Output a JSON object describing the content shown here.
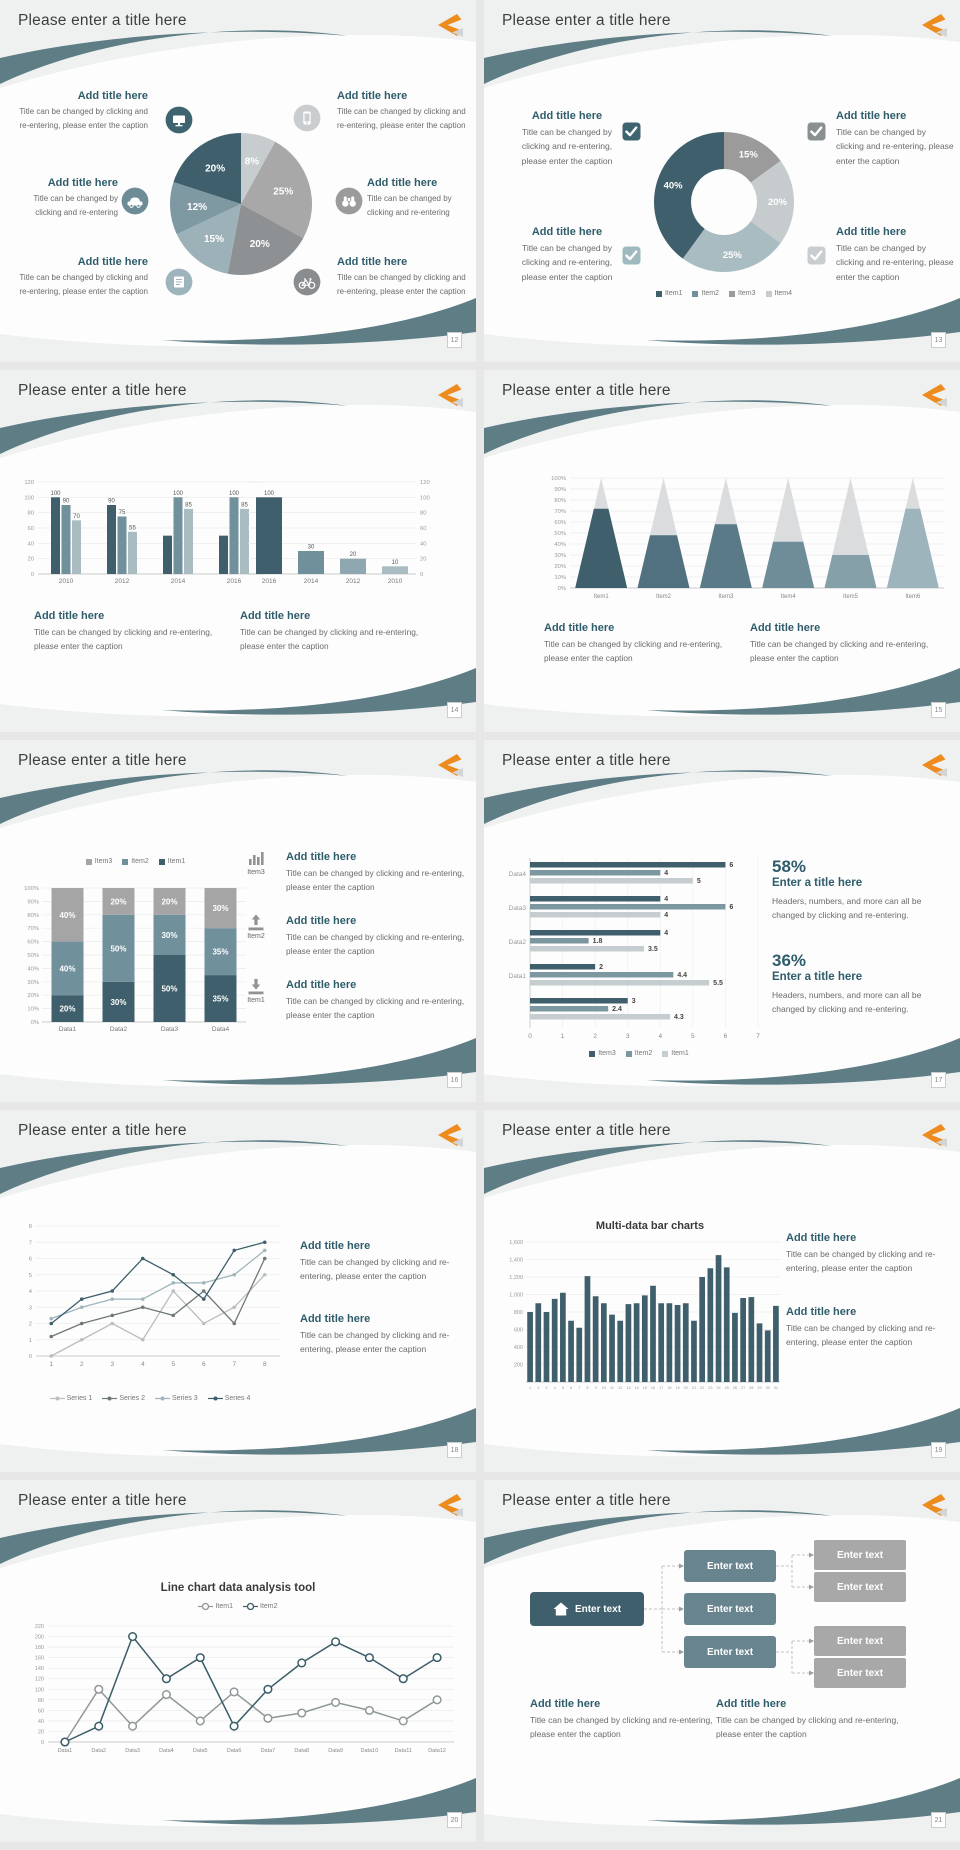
{
  "page": {
    "background": "#e7e7e7"
  },
  "common": {
    "slide_title": "Please enter a title here",
    "add_title": "Add title here",
    "caption_long": "Title can be changed by clicking and re-entering, please enter the caption",
    "caption_short": "Title can be changed by clicking and re-entering",
    "stat_caption": "Headers, numbers, and more can all be changed by clicking and re-entering.",
    "enter_title": "Enter a title here",
    "enter_text": "Enter text"
  },
  "colors": {
    "teal_dark": "#3e5f6b",
    "teal_mid": "#70909c",
    "teal_light": "#a9bcc2",
    "gray_light": "#c6cbce",
    "gray_mid": "#9b9b9b",
    "gray_dark": "#8e9193",
    "heading": "#2f5d6b",
    "swoosh": "#5e7d85",
    "orange": "#ee8b1e",
    "logo_gray": "#d2d4d5",
    "caption": "#6b6b6b",
    "title": "#3e3e3e"
  },
  "slides": [
    {
      "page": "12",
      "type": "pie_callouts",
      "chart": 0,
      "blocks": [
        {
          "pos": "left-top",
          "icon": "monitor-icon",
          "icon_color": "#3e6470",
          "caption": "long"
        },
        {
          "pos": "left-middle",
          "icon": "car-icon",
          "icon_color": "#6d8c96",
          "caption": "short"
        },
        {
          "pos": "left-bottom",
          "icon": "book-icon",
          "icon_color": "#9db4bc",
          "caption": "long"
        },
        {
          "pos": "right-top",
          "icon": "phone-icon",
          "icon_color": "#c9cdd0",
          "caption": "long"
        },
        {
          "pos": "right-middle",
          "icon": "binoculars-icon",
          "icon_color": "#9b9b9b",
          "caption": "short"
        },
        {
          "pos": "right-bottom",
          "icon": "bicycle-icon",
          "icon_color": "#8a8d8f",
          "caption": "long"
        }
      ]
    },
    {
      "page": "13",
      "type": "donut_checks",
      "chart": 1,
      "blocks": [
        {
          "pos": "left-top",
          "check_color": "#3e6470",
          "caption": "long"
        },
        {
          "pos": "right-top",
          "check_color": "#8a8f91",
          "caption": "long"
        },
        {
          "pos": "left-bottom",
          "check_color": "#9fb9c0",
          "caption": "long"
        },
        {
          "pos": "right-bottom",
          "check_color": "#c9cdcf",
          "caption": "long"
        }
      ]
    },
    {
      "page": "14",
      "type": "two_bars",
      "charts": [
        2,
        3
      ],
      "blocks": [
        {
          "caption": "long"
        },
        {
          "caption": "long"
        }
      ]
    },
    {
      "page": "15",
      "type": "pyramids",
      "chart": 4,
      "blocks": [
        {
          "caption": "long"
        },
        {
          "caption": "long"
        }
      ]
    },
    {
      "page": "16",
      "type": "stacked_features",
      "chart": 5,
      "blocks": [
        {
          "icon": "bar-chart-icon",
          "label": "Item3",
          "caption": "long"
        },
        {
          "icon": "upload-icon",
          "label": "Item2",
          "caption": "long"
        },
        {
          "icon": "download-icon",
          "label": "Item1",
          "caption": "long"
        }
      ]
    },
    {
      "page": "17",
      "type": "hbar_stats",
      "chart": 6,
      "blocks": [
        {
          "value": "58%"
        },
        {
          "value": "36%"
        }
      ]
    },
    {
      "page": "18",
      "type": "line_text",
      "chart": 7,
      "blocks": [
        {
          "caption": "long"
        },
        {
          "caption": "long"
        }
      ]
    },
    {
      "page": "19",
      "type": "multibar_text",
      "chart": 8,
      "blocks": [
        {
          "caption": "long"
        },
        {
          "caption": "long"
        }
      ]
    },
    {
      "page": "20",
      "type": "line_full",
      "chart": 9,
      "blocks": []
    },
    {
      "page": "21",
      "type": "diagram",
      "blocks": [
        {
          "caption": "long"
        },
        {
          "caption": "long"
        }
      ],
      "diagram": {
        "root_label": "Enter text",
        "mid_labels": [
          "Enter text",
          "Enter text",
          "Enter text"
        ],
        "leaf_labels": [
          "Enter text",
          "Enter text",
          "Enter text",
          "Enter text"
        ]
      }
    }
  ],
  "chart_data": [
    {
      "type": "pie",
      "labels": [
        "8%",
        "25%",
        "20%",
        "15%",
        "12%",
        "20%"
      ],
      "values": [
        8,
        25,
        20,
        15,
        12,
        20
      ],
      "colors": [
        "#c7ccce",
        "#a8a8a8",
        "#8e9193",
        "#9db1b8",
        "#7f99a3",
        "#3e5f6b"
      ]
    },
    {
      "type": "pie",
      "subtype": "donut",
      "labels": [
        "15%",
        "20%",
        "25%",
        "40%"
      ],
      "values": [
        15,
        20,
        25,
        40
      ],
      "colors": [
        "#9b9b9b",
        "#c6cbce",
        "#a9bcc2",
        "#3e5f6b"
      ],
      "legend": [
        "Item1",
        "Item2",
        "Item3",
        "Item4"
      ],
      "legend_colors": [
        "#3e5f6b",
        "#70909c",
        "#9b9b9b",
        "#c6cbce"
      ],
      "legend_position": "bottom"
    },
    {
      "type": "bar",
      "categories": [
        "2010",
        "2012",
        "2014",
        "2016"
      ],
      "series": [
        {
          "values": [
            100,
            90,
            50,
            50
          ],
          "labels": [
            "100",
            "90",
            "",
            ""
          ],
          "color": "#3e5f6b"
        },
        {
          "values": [
            90,
            75,
            100,
            100
          ],
          "labels": [
            "90",
            "75",
            "100",
            "100"
          ],
          "color": "#70909c"
        },
        {
          "values": [
            70,
            55,
            85,
            85
          ],
          "labels": [
            "70",
            "55",
            "85",
            "85"
          ],
          "color": "#a9bcc2"
        }
      ],
      "ylim": [
        0,
        120
      ],
      "ystep": 20,
      "axis_side": "left",
      "grid": true
    },
    {
      "type": "bar",
      "categories": [
        "2016",
        "2014",
        "2012",
        "2010"
      ],
      "series": [
        {
          "values": [
            100,
            30,
            20,
            10
          ],
          "labels": [
            "100",
            "30",
            "20",
            "10"
          ],
          "color": null
        }
      ],
      "bar_colors": [
        "#3e5f6b",
        "#70909c",
        "#8ea7b0",
        "#a9bcc2"
      ],
      "ylim": [
        0,
        120
      ],
      "ystep": 20,
      "axis_side": "right",
      "grid": true
    },
    {
      "type": "bar",
      "subtype": "pyramid",
      "categories": [
        "Item1",
        "Item2",
        "Item3",
        "Item4",
        "Item5",
        "Item6"
      ],
      "values": [
        72,
        48,
        58,
        42,
        30,
        72
      ],
      "colors": [
        "#3e5f6b",
        "#527180",
        "#5b7a87",
        "#6f8d99",
        "#86a0aa",
        "#9db4bc"
      ],
      "ylim": [
        0,
        100
      ],
      "ystep": 10,
      "ytick_suffix": "%"
    },
    {
      "type": "bar",
      "subtype": "stacked",
      "categories": [
        "Data1",
        "Data2",
        "Data3",
        "Data4"
      ],
      "series": [
        {
          "name": "Item1",
          "values": [
            20,
            30,
            50,
            35
          ],
          "color": "#3e5f6b"
        },
        {
          "name": "Item2",
          "values": [
            40,
            50,
            30,
            35
          ],
          "color": "#70909c"
        },
        {
          "name": "Item3",
          "values": [
            40,
            20,
            20,
            30
          ],
          "color": "#a5a5a5"
        }
      ],
      "legend_order": [
        "Item3",
        "Item2",
        "Item1"
      ],
      "legend_colors": [
        "#a5a5a5",
        "#70909c",
        "#3e5f6b"
      ],
      "ylim": [
        0,
        100
      ],
      "ystep": 10,
      "ytick_suffix": "%",
      "legend_position": "top"
    },
    {
      "type": "bar",
      "subtype": "horizontal",
      "groups": [
        "Data4",
        "Data3",
        "Data2",
        "Data1",
        ""
      ],
      "series": [
        {
          "name": "Item3",
          "values": [
            6,
            4,
            4,
            2,
            3
          ],
          "color": "#3e5f6b"
        },
        {
          "name": "Item2",
          "values": [
            4,
            6,
            1.8,
            4.4,
            2.4
          ],
          "color": "#7d97a0"
        },
        {
          "name": "Item1",
          "values": [
            5,
            4,
            3.5,
            5.5,
            4.3
          ],
          "color": "#c6cdd0"
        }
      ],
      "xlim": [
        0,
        7
      ],
      "xstep": 1,
      "legend_position": "bottom"
    },
    {
      "type": "line",
      "x": [
        1,
        2,
        3,
        4,
        5,
        6,
        7,
        8
      ],
      "series": [
        {
          "name": "Series 1",
          "values": [
            0,
            1,
            2,
            1,
            4,
            2,
            3,
            5
          ],
          "color": "#b9bec0"
        },
        {
          "name": "Series 2",
          "values": [
            1.2,
            2,
            2.5,
            3,
            2.5,
            4,
            2,
            6
          ],
          "color": "#6f7779"
        },
        {
          "name": "Series 3",
          "values": [
            2.3,
            3,
            3.5,
            3.5,
            4.5,
            4.5,
            5,
            6.5
          ],
          "color": "#9fb4bb"
        },
        {
          "name": "Series 4",
          "values": [
            2,
            3.5,
            4,
            6,
            5,
            3.5,
            6.5,
            7
          ],
          "color": "#3e5f6b"
        }
      ],
      "ylim": [
        0,
        8
      ],
      "ystep": 1,
      "legend_position": "bottom",
      "grid": true
    },
    {
      "type": "bar",
      "title": "Multi-data bar charts",
      "categories": [
        "1",
        "2",
        "3",
        "4",
        "5",
        "6",
        "7",
        "8",
        "9",
        "10",
        "11",
        "12",
        "13",
        "14",
        "15",
        "16",
        "17",
        "18",
        "19",
        "20",
        "21",
        "22",
        "23",
        "24",
        "25",
        "26",
        "27",
        "28",
        "29",
        "30",
        "31"
      ],
      "values": [
        800,
        900,
        800,
        950,
        1020,
        700,
        620,
        1210,
        980,
        900,
        770,
        700,
        890,
        900,
        990,
        1100,
        900,
        900,
        880,
        900,
        700,
        1200,
        1300,
        1450,
        1310,
        790,
        960,
        970,
        670,
        590,
        870
      ],
      "color": "#3e5f6b",
      "ylim": [
        0,
        1600
      ],
      "yticks": [
        "200",
        "400",
        "600",
        "800",
        "1,000",
        "1,200",
        "1,400",
        "1,600"
      ],
      "grid": true
    },
    {
      "type": "line",
      "title": "Line chart data analysis tool",
      "x": [
        "Data1",
        "Data2",
        "Data3",
        "Data4",
        "Data5",
        "Data6",
        "Data7",
        "Data8",
        "Data9",
        "Data10",
        "Data11",
        "Data12"
      ],
      "series": [
        {
          "name": "Item1",
          "values": [
            0,
            100,
            30,
            90,
            40,
            95,
            45,
            55,
            75,
            60,
            40,
            80
          ],
          "color": "#8f9799"
        },
        {
          "name": "Item2",
          "values": [
            0,
            30,
            200,
            120,
            160,
            30,
            100,
            150,
            190,
            160,
            120,
            160
          ],
          "color": "#3a5d68"
        }
      ],
      "ylim": [
        0,
        220
      ],
      "ystep": 20,
      "legend_position": "top",
      "grid": true,
      "marker": "open-circle"
    }
  ]
}
